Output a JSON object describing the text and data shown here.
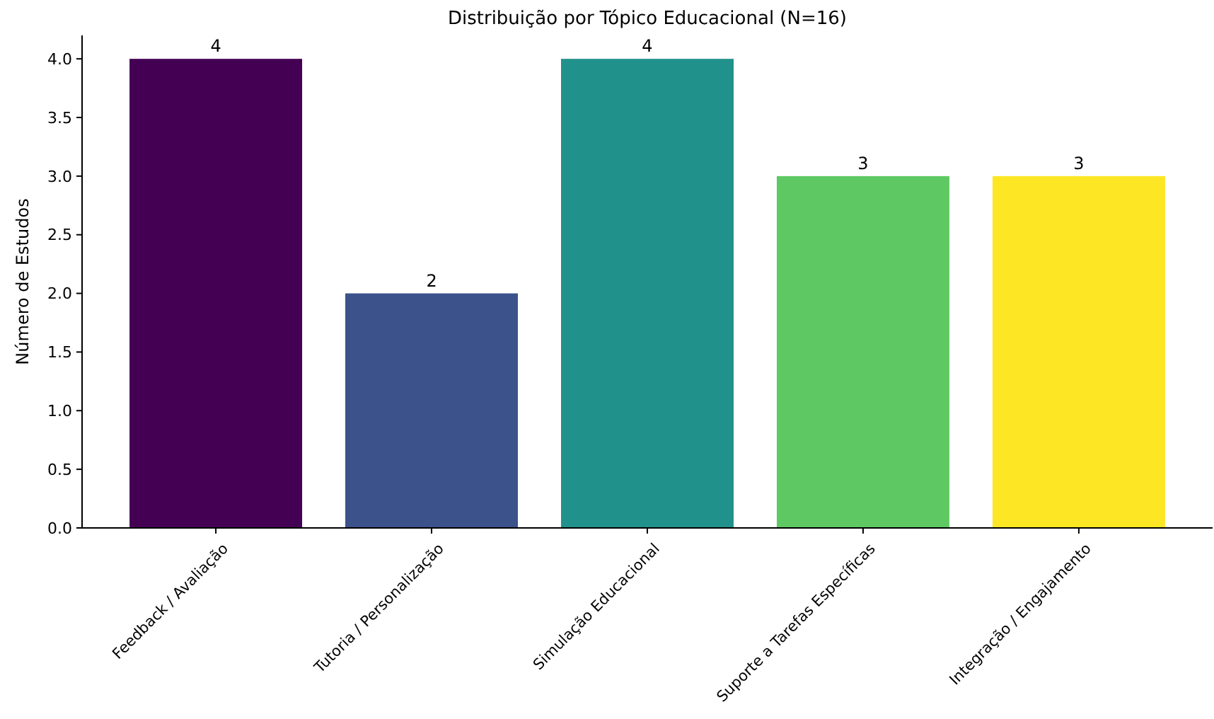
{
  "chart_data": {
    "type": "bar",
    "title": "Distribuição por Tópico Educacional (N=16)",
    "ylabel": "Número de Estudos",
    "categories": [
      "Feedback / Avaliação",
      "Tutoria / Personalização",
      "Simulação Educacional",
      "Suporte a Tarefas Específicas",
      "Integração / Engajamento"
    ],
    "values": [
      4,
      2,
      4,
      3,
      3
    ],
    "colors": [
      "#440154",
      "#3b528b",
      "#21918c",
      "#5ec962",
      "#fde725"
    ],
    "ylim": [
      0,
      4.2
    ],
    "yticks": [
      {
        "value": 0,
        "label": "0.0"
      },
      {
        "value": 0.5,
        "label": "0.5"
      },
      {
        "value": 1,
        "label": "1.0"
      },
      {
        "value": 1.5,
        "label": "1.5"
      },
      {
        "value": 2,
        "label": "2.0"
      },
      {
        "value": 2.5,
        "label": "2.5"
      },
      {
        "value": 3,
        "label": "3.0"
      },
      {
        "value": 3.5,
        "label": "3.5"
      },
      {
        "value": 4,
        "label": "4.0"
      }
    ],
    "data_labels": true
  }
}
